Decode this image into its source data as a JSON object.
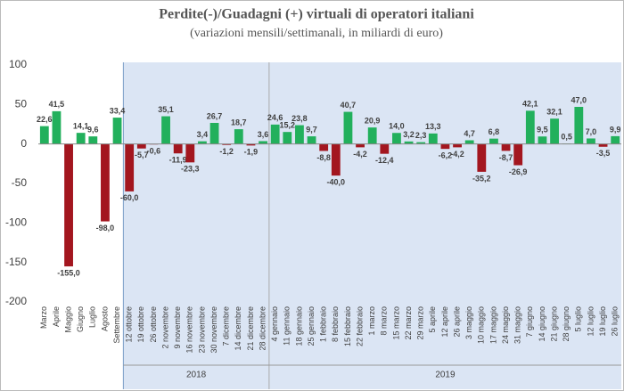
{
  "chart_data": {
    "type": "bar",
    "title": "Perdite(-)/Guadagni (+) virtuali di operatori italiani",
    "subtitle": "(variazioni mensili/settimanali, in miliardi di euro)",
    "categories": [
      "Marzo",
      "Aprile",
      "Maggio",
      "Giugno",
      "Luglio",
      "Agosto",
      "Settembre",
      "12 ottobre",
      "19 ottobre",
      "26 ottobre",
      "2 novembre",
      "9 novembre",
      "16 novembre",
      "23 novembre",
      "30 novembre",
      "7 dicembre",
      "14 dicembre",
      "21 dicembre",
      "28 dicembre",
      "4 gennaio",
      "11 gennaio",
      "18 gennaio",
      "25 gennaio",
      "1 febbraio",
      "8 febbraio",
      "15 febbraio",
      "22 febbraio",
      "1 marzo",
      "8 marzo",
      "15 marzo",
      "22 marzo",
      "29 marzo",
      "5 aprile",
      "12 aprile",
      "26 aprile",
      "3 maggio",
      "10 maggio",
      "17 maggio",
      "24 maggio",
      "31 maggio",
      "7 giugno",
      "14 giugno",
      "21 giugno",
      "28 giugno",
      "5 luglio",
      "12 luglio",
      "19 luglio",
      "26 luglio"
    ],
    "values": [
      22.6,
      41.5,
      -155.0,
      14.1,
      9.6,
      -98.0,
      33.4,
      -60.0,
      -5.7,
      -0.6,
      35.1,
      -11.9,
      -23.3,
      3.4,
      26.7,
      -1.2,
      18.7,
      -1.9,
      3.6,
      24.6,
      15.2,
      23.8,
      9.7,
      -8.8,
      -40.0,
      40.7,
      -4.2,
      20.9,
      -12.4,
      14.0,
      3.2,
      2.3,
      13.3,
      -6.2,
      -4.2,
      4.7,
      -35.2,
      6.8,
      -8.7,
      -26.9,
      42.1,
      9.5,
      32.1,
      0.5,
      47.0,
      7.0,
      -3.5,
      9.9
    ],
    "value_labels": [
      "22,6",
      "41,5",
      "-155,0",
      "14,1",
      "9,6",
      "-98,0",
      "33,4",
      "-60,0",
      "-5,7",
      "-0,6",
      "35,1",
      "-11,9",
      "-23,3",
      "3,4",
      "26,7",
      "-1,2",
      "18,7",
      "-1,9",
      "3,6",
      "24,6",
      "15,2",
      "23,8",
      "9,7",
      "-8,8",
      "-40,0",
      "40,7",
      "-4,2",
      "20,9",
      "-12,4",
      "14,0",
      "3,2",
      "2,3",
      "13,3",
      "-6,2",
      "-4,2",
      "4,7",
      "-35,2",
      "6,8",
      "-8,7",
      "-26,9",
      "42,1",
      "9,5",
      "32,1",
      "0,5",
      "47,0",
      "7,0",
      "-3,5",
      "9,9"
    ],
    "colors": {
      "positive": "#22b05c",
      "negative": "#a3161f"
    },
    "x_groups": [
      {
        "label": null,
        "count": 7
      },
      {
        "label": "2018",
        "count": 12
      },
      {
        "label": "2019",
        "count": 29
      }
    ],
    "ylim": [
      -200,
      100
    ],
    "yticks": [
      100,
      50,
      0,
      -50,
      -100,
      -150,
      -200
    ],
    "grid": false
  }
}
